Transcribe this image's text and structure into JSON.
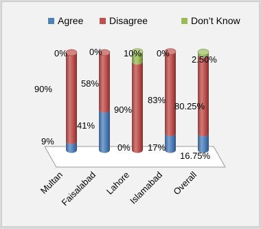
{
  "chart_data": {
    "type": "bar",
    "stacked": true,
    "style": "3d-cylinder",
    "categories": [
      "Multan",
      "Faisalabad",
      "Lahore",
      "Islamabad",
      "Overall"
    ],
    "series": [
      {
        "name": "Agree",
        "color": "#4f81bd",
        "values": [
          9,
          41,
          0,
          17,
          16.75
        ],
        "labels": [
          "9%",
          "41%",
          "0%",
          "17%",
          "16.75%"
        ]
      },
      {
        "name": "Disagree",
        "color": "#c0504d",
        "values": [
          90,
          58,
          90,
          83,
          80.25
        ],
        "labels": [
          "90%",
          "58%",
          "90%",
          "83%",
          "80.25%"
        ]
      },
      {
        "name": "Don't Know",
        "color": "#9bbb59",
        "values": [
          0,
          0,
          10,
          0,
          2.5
        ],
        "labels": [
          "0%",
          "0%",
          "10%",
          "0%",
          "2.50%"
        ]
      }
    ],
    "legend": {
      "position": "top",
      "entries": [
        "Agree",
        "Disagree",
        "Don’t Know"
      ]
    },
    "ylim": [
      0,
      100
    ],
    "grid": false
  }
}
